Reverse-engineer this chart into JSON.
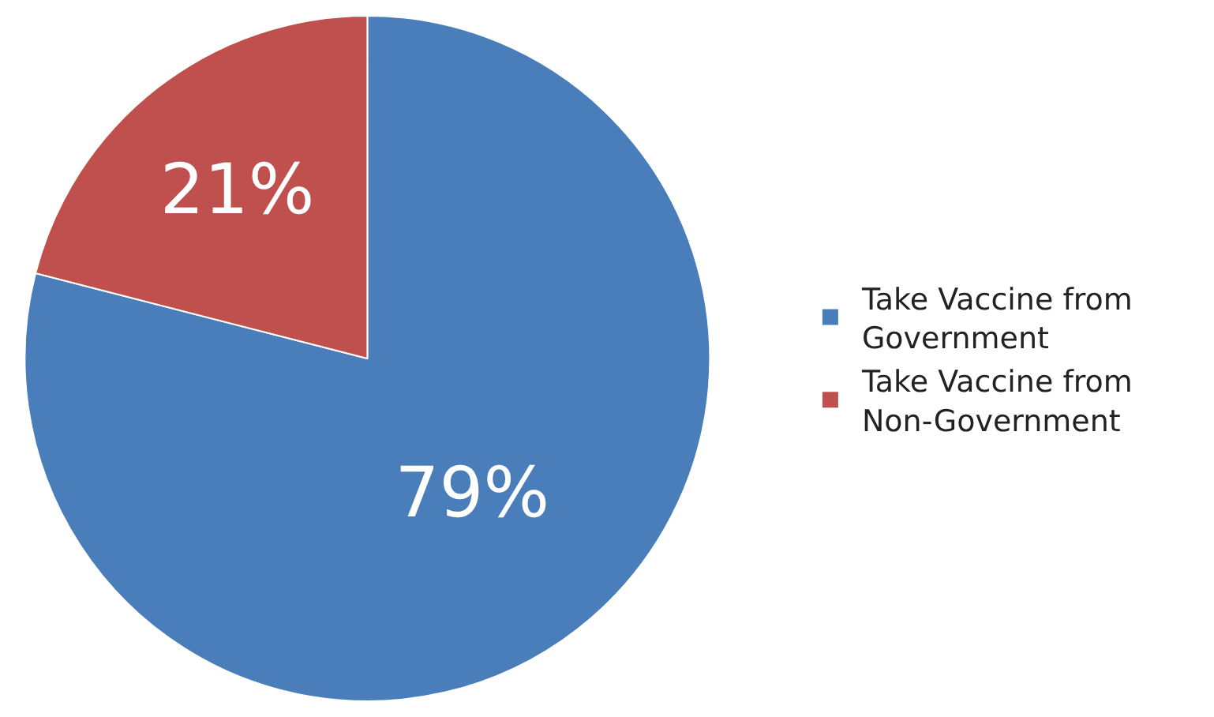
{
  "chart_data": {
    "type": "pie",
    "categories": [
      "Take Vaccine from\nGovernment",
      "Take Vaccine from\nNon-Government"
    ],
    "values": [
      79,
      21
    ],
    "colors": [
      "#4a7ebb",
      "#c0504d"
    ],
    "value_labels": [
      "79%",
      "21%"
    ],
    "legend": "right"
  }
}
